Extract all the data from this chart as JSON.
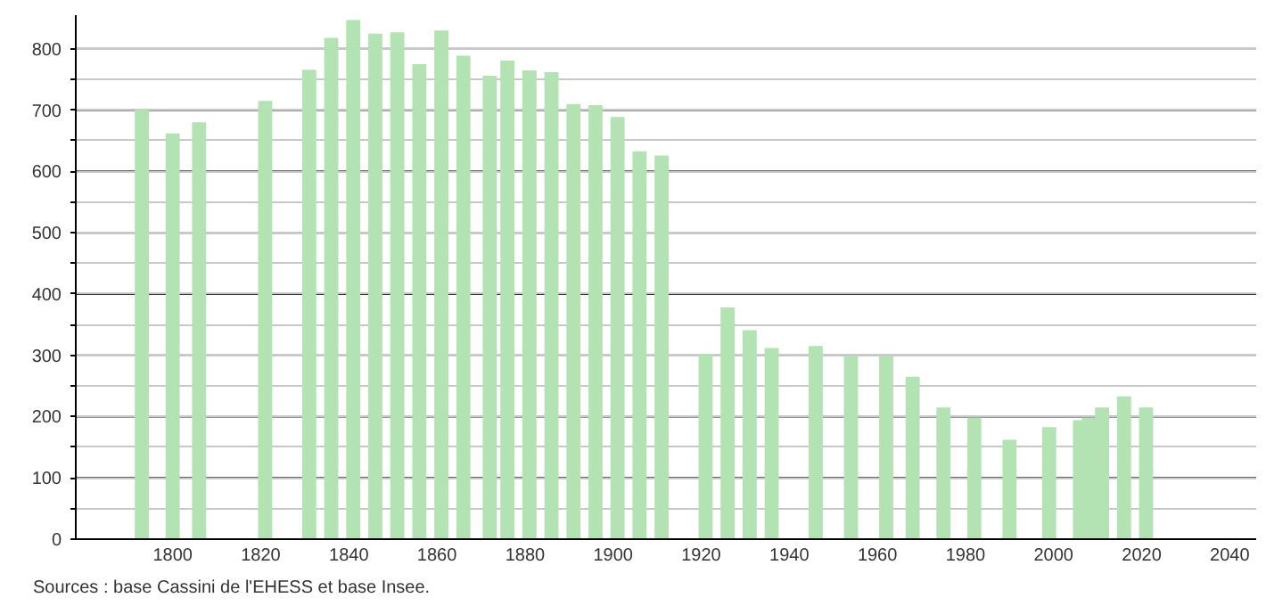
{
  "chart_data": {
    "type": "bar",
    "x": [
      1793,
      1800,
      1806,
      1821,
      1831,
      1836,
      1841,
      1846,
      1851,
      1856,
      1861,
      1866,
      1872,
      1876,
      1881,
      1886,
      1891,
      1896,
      1901,
      1906,
      1911,
      1921,
      1926,
      1931,
      1936,
      1946,
      1954,
      1962,
      1968,
      1975,
      1982,
      1990,
      1999,
      2006,
      2008,
      2011,
      2016,
      2021
    ],
    "values": [
      700,
      662,
      680,
      715,
      766,
      818,
      847,
      825,
      827,
      775,
      830,
      789,
      756,
      781,
      765,
      762,
      710,
      708,
      689,
      633,
      626,
      302,
      378,
      341,
      312,
      315,
      299,
      299,
      265,
      215,
      198,
      162,
      183,
      194,
      198,
      215,
      233,
      215
    ],
    "color": "#b3e3b3",
    "xlim": [
      1778,
      2046
    ],
    "xticks": [
      1800,
      1820,
      1840,
      1860,
      1880,
      1900,
      1920,
      1940,
      1960,
      1980,
      2000,
      2020,
      2040
    ],
    "ylim": [
      0,
      855
    ],
    "yticks": [
      0,
      {
        "value": 50,
        "label": null
      },
      100,
      {
        "value": 150,
        "label": null
      },
      200,
      {
        "value": 250,
        "label": null
      },
      300,
      {
        "value": 350,
        "label": null
      },
      400,
      {
        "value": 450,
        "label": null
      },
      500,
      {
        "value": 550,
        "label": null
      },
      600,
      {
        "value": 650,
        "label": null
      },
      700,
      {
        "value": 750,
        "label": null
      },
      800
    ],
    "grid": "y",
    "annotations": [
      "Sources : base Cassini de l'EHESS et base Insee."
    ]
  }
}
